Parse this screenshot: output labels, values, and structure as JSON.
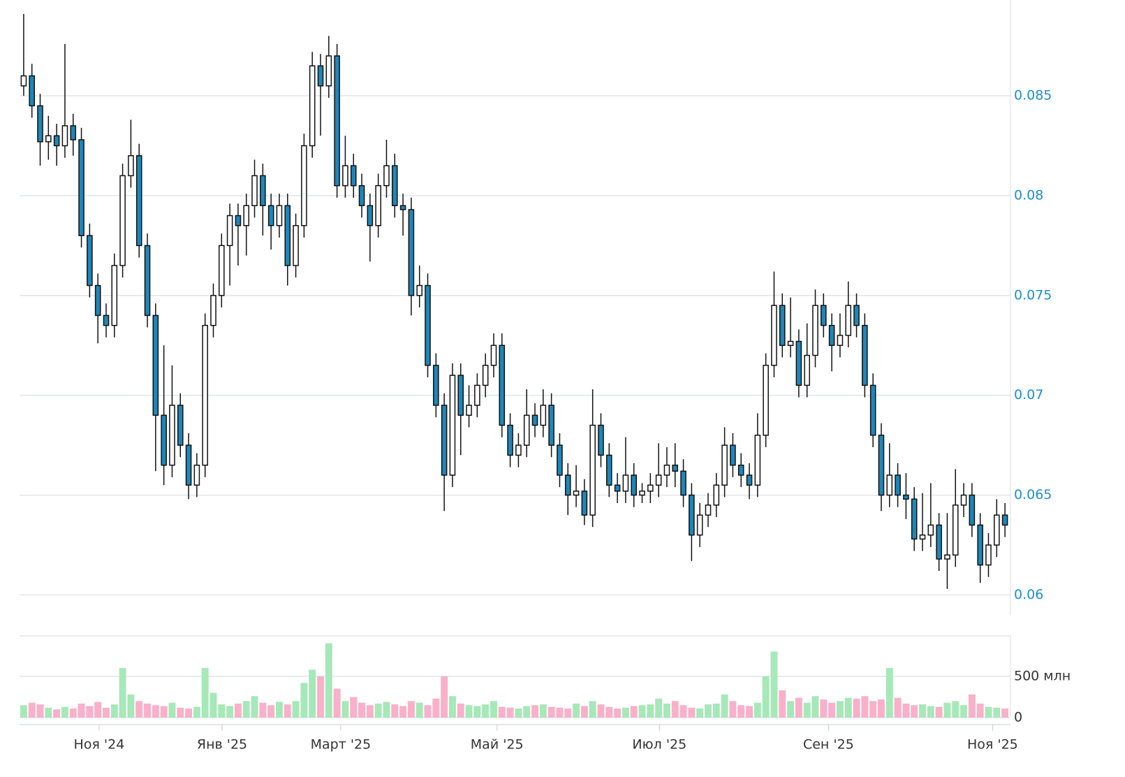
{
  "chart_data": {
    "type": "candlestick",
    "ohlc": [
      [
        0.0855,
        0.0891,
        0.085,
        0.086
      ],
      [
        0.086,
        0.0866,
        0.0839,
        0.0845
      ],
      [
        0.0845,
        0.0851,
        0.0815,
        0.0827
      ],
      [
        0.0827,
        0.084,
        0.0818,
        0.083
      ],
      [
        0.083,
        0.0836,
        0.0815,
        0.0825
      ],
      [
        0.0825,
        0.0876,
        0.0819,
        0.0835
      ],
      [
        0.0835,
        0.0841,
        0.082,
        0.0828
      ],
      [
        0.0828,
        0.0834,
        0.0774,
        0.078
      ],
      [
        0.078,
        0.0786,
        0.0749,
        0.0755
      ],
      [
        0.0755,
        0.0761,
        0.0726,
        0.074
      ],
      [
        0.074,
        0.0746,
        0.0729,
        0.0735
      ],
      [
        0.0735,
        0.0771,
        0.0729,
        0.0765
      ],
      [
        0.0765,
        0.0816,
        0.0759,
        0.081
      ],
      [
        0.081,
        0.0838,
        0.0804,
        0.082
      ],
      [
        0.082,
        0.0826,
        0.0769,
        0.0775
      ],
      [
        0.0775,
        0.0781,
        0.0734,
        0.074
      ],
      [
        0.074,
        0.0746,
        0.0662,
        0.069
      ],
      [
        0.069,
        0.0725,
        0.0655,
        0.0665
      ],
      [
        0.0665,
        0.0715,
        0.0659,
        0.0695
      ],
      [
        0.0695,
        0.0701,
        0.0669,
        0.0675
      ],
      [
        0.0675,
        0.0681,
        0.0648,
        0.0655
      ],
      [
        0.0655,
        0.0671,
        0.0649,
        0.0665
      ],
      [
        0.0665,
        0.0741,
        0.0659,
        0.0735
      ],
      [
        0.0735,
        0.0756,
        0.0729,
        0.075
      ],
      [
        0.075,
        0.0781,
        0.0744,
        0.0775
      ],
      [
        0.0775,
        0.0796,
        0.0755,
        0.079
      ],
      [
        0.079,
        0.0796,
        0.0765,
        0.0785
      ],
      [
        0.0785,
        0.0801,
        0.077,
        0.0795
      ],
      [
        0.0795,
        0.0818,
        0.0789,
        0.081
      ],
      [
        0.081,
        0.0816,
        0.078,
        0.0795
      ],
      [
        0.0795,
        0.0801,
        0.0773,
        0.0785
      ],
      [
        0.0785,
        0.0801,
        0.0779,
        0.0795
      ],
      [
        0.0795,
        0.0801,
        0.0755,
        0.0765
      ],
      [
        0.0765,
        0.0791,
        0.0759,
        0.0785
      ],
      [
        0.0785,
        0.0831,
        0.0779,
        0.0825
      ],
      [
        0.0825,
        0.0872,
        0.0819,
        0.0865
      ],
      [
        0.0865,
        0.0871,
        0.083,
        0.0855
      ],
      [
        0.0855,
        0.088,
        0.0849,
        0.087
      ],
      [
        0.087,
        0.0876,
        0.0799,
        0.0805
      ],
      [
        0.0805,
        0.083,
        0.0799,
        0.0815
      ],
      [
        0.0815,
        0.0821,
        0.0799,
        0.0805
      ],
      [
        0.0805,
        0.0811,
        0.0789,
        0.0795
      ],
      [
        0.0795,
        0.0801,
        0.0767,
        0.0785
      ],
      [
        0.0785,
        0.0811,
        0.0779,
        0.0805
      ],
      [
        0.0805,
        0.0828,
        0.0799,
        0.0815
      ],
      [
        0.0815,
        0.0821,
        0.0789,
        0.0795
      ],
      [
        0.0795,
        0.0801,
        0.078,
        0.0793
      ],
      [
        0.0793,
        0.0799,
        0.074,
        0.075
      ],
      [
        0.075,
        0.0765,
        0.0744,
        0.0755
      ],
      [
        0.0755,
        0.0761,
        0.0709,
        0.0715
      ],
      [
        0.0715,
        0.0721,
        0.0689,
        0.0695
      ],
      [
        0.0695,
        0.0701,
        0.0642,
        0.066
      ],
      [
        0.066,
        0.0716,
        0.0654,
        0.071
      ],
      [
        0.071,
        0.0716,
        0.067,
        0.069
      ],
      [
        0.069,
        0.0705,
        0.0684,
        0.0695
      ],
      [
        0.0695,
        0.0711,
        0.0689,
        0.0705
      ],
      [
        0.0705,
        0.0721,
        0.0699,
        0.0715
      ],
      [
        0.0715,
        0.0731,
        0.0709,
        0.0725
      ],
      [
        0.0725,
        0.0731,
        0.0679,
        0.0685
      ],
      [
        0.0685,
        0.0691,
        0.0664,
        0.067
      ],
      [
        0.067,
        0.0681,
        0.0664,
        0.0675
      ],
      [
        0.0675,
        0.0703,
        0.0669,
        0.069
      ],
      [
        0.069,
        0.0696,
        0.0679,
        0.0685
      ],
      [
        0.0685,
        0.0703,
        0.0679,
        0.0695
      ],
      [
        0.0695,
        0.0701,
        0.0669,
        0.0675
      ],
      [
        0.0675,
        0.0681,
        0.0654,
        0.066
      ],
      [
        0.066,
        0.0666,
        0.064,
        0.065
      ],
      [
        0.065,
        0.0665,
        0.0644,
        0.0652
      ],
      [
        0.0652,
        0.0658,
        0.0635,
        0.064
      ],
      [
        0.064,
        0.0703,
        0.0634,
        0.0685
      ],
      [
        0.0685,
        0.0691,
        0.0664,
        0.067
      ],
      [
        0.067,
        0.0676,
        0.0649,
        0.0655
      ],
      [
        0.0655,
        0.0661,
        0.0646,
        0.0652
      ],
      [
        0.0652,
        0.0679,
        0.0646,
        0.066
      ],
      [
        0.066,
        0.0666,
        0.0644,
        0.065
      ],
      [
        0.065,
        0.0656,
        0.0646,
        0.0652
      ],
      [
        0.0652,
        0.0661,
        0.0646,
        0.0655
      ],
      [
        0.0655,
        0.0676,
        0.0649,
        0.066
      ],
      [
        0.066,
        0.0674,
        0.0654,
        0.0665
      ],
      [
        0.0665,
        0.0676,
        0.0654,
        0.0662
      ],
      [
        0.0662,
        0.0668,
        0.0644,
        0.065
      ],
      [
        0.065,
        0.0656,
        0.0617,
        0.063
      ],
      [
        0.063,
        0.0646,
        0.0624,
        0.064
      ],
      [
        0.064,
        0.0651,
        0.0634,
        0.0645
      ],
      [
        0.0645,
        0.0661,
        0.0639,
        0.0655
      ],
      [
        0.0655,
        0.0684,
        0.0649,
        0.0675
      ],
      [
        0.0675,
        0.0681,
        0.0659,
        0.0665
      ],
      [
        0.0665,
        0.0671,
        0.0654,
        0.066
      ],
      [
        0.066,
        0.0666,
        0.0648,
        0.0655
      ],
      [
        0.0655,
        0.0691,
        0.0649,
        0.068
      ],
      [
        0.068,
        0.0721,
        0.0674,
        0.0715
      ],
      [
        0.0715,
        0.0762,
        0.0709,
        0.0745
      ],
      [
        0.0745,
        0.0751,
        0.0719,
        0.0725
      ],
      [
        0.0725,
        0.0749,
        0.0719,
        0.0727
      ],
      [
        0.0727,
        0.0733,
        0.0699,
        0.0705
      ],
      [
        0.0705,
        0.0736,
        0.0699,
        0.072
      ],
      [
        0.072,
        0.0753,
        0.0714,
        0.0745
      ],
      [
        0.0745,
        0.0751,
        0.0729,
        0.0735
      ],
      [
        0.0735,
        0.0741,
        0.0712,
        0.0725
      ],
      [
        0.0725,
        0.0741,
        0.0719,
        0.073
      ],
      [
        0.073,
        0.0757,
        0.0724,
        0.0745
      ],
      [
        0.0745,
        0.0751,
        0.0729,
        0.0735
      ],
      [
        0.0735,
        0.0741,
        0.0699,
        0.0705
      ],
      [
        0.0705,
        0.0711,
        0.0674,
        0.068
      ],
      [
        0.068,
        0.0686,
        0.0642,
        0.065
      ],
      [
        0.065,
        0.0676,
        0.0644,
        0.066
      ],
      [
        0.066,
        0.0666,
        0.0644,
        0.065
      ],
      [
        0.065,
        0.0661,
        0.0638,
        0.0648
      ],
      [
        0.0648,
        0.0654,
        0.0622,
        0.0628
      ],
      [
        0.0628,
        0.0651,
        0.0622,
        0.063
      ],
      [
        0.063,
        0.0656,
        0.0624,
        0.0635
      ],
      [
        0.0635,
        0.0641,
        0.0612,
        0.0618
      ],
      [
        0.0618,
        0.0641,
        0.0603,
        0.062
      ],
      [
        0.062,
        0.0663,
        0.0614,
        0.0645
      ],
      [
        0.0645,
        0.0656,
        0.0639,
        0.065
      ],
      [
        0.065,
        0.0656,
        0.0629,
        0.0635
      ],
      [
        0.0635,
        0.0641,
        0.0606,
        0.0615
      ],
      [
        0.0615,
        0.0631,
        0.0609,
        0.0625
      ],
      [
        0.0625,
        0.0648,
        0.0619,
        0.064
      ],
      [
        0.064,
        0.0646,
        0.0629,
        0.0635
      ]
    ],
    "up_color": "#ffffff",
    "down_color": "#1f86b8",
    "edge_color": "#111111",
    "ylim": [
      0.059,
      0.0898
    ],
    "yticks": [
      0.06,
      0.065,
      0.07,
      0.075,
      0.08,
      0.085
    ],
    "grid": true,
    "xticks": [
      {
        "value": 9.15,
        "label": "Ноя '24"
      },
      {
        "value": 24.06,
        "label": "Янв '25"
      },
      {
        "value": 38.45,
        "label": "Март '25"
      },
      {
        "value": 57.4,
        "label": "Май '25"
      },
      {
        "value": 77.1,
        "label": "Июл '25"
      },
      {
        "value": 97.6,
        "label": "Сен '25"
      },
      {
        "value": 117.5,
        "label": "Ноя '25"
      }
    ],
    "volume": {
      "values": [
        150,
        180,
        160,
        120,
        100,
        130,
        110,
        170,
        140,
        190,
        120,
        160,
        600,
        280,
        200,
        170,
        150,
        140,
        180,
        120,
        110,
        130,
        600,
        300,
        160,
        140,
        170,
        200,
        260,
        180,
        150,
        190,
        160,
        200,
        420,
        580,
        500,
        900,
        350,
        200,
        250,
        180,
        150,
        170,
        190,
        160,
        140,
        200,
        180,
        150,
        230,
        500,
        260,
        170,
        150,
        140,
        160,
        200,
        130,
        120,
        110,
        140,
        150,
        160,
        130,
        120,
        110,
        170,
        140,
        200,
        160,
        130,
        110,
        120,
        140,
        150,
        160,
        230,
        170,
        200,
        150,
        120,
        110,
        160,
        170,
        280,
        200,
        150,
        140,
        180,
        500,
        800,
        330,
        200,
        240,
        180,
        260,
        220,
        180,
        200,
        240,
        230,
        260,
        200,
        220,
        600,
        240,
        170,
        150,
        160,
        140,
        130,
        180,
        200,
        150,
        280,
        170,
        130,
        120,
        110
      ],
      "up_color": "#a6e8b8",
      "down_color": "#f9b0c8",
      "ylim": [
        0,
        990
      ],
      "yticks": [
        0,
        {
          "value": 500,
          "label": "500 млн"
        }
      ]
    }
  }
}
